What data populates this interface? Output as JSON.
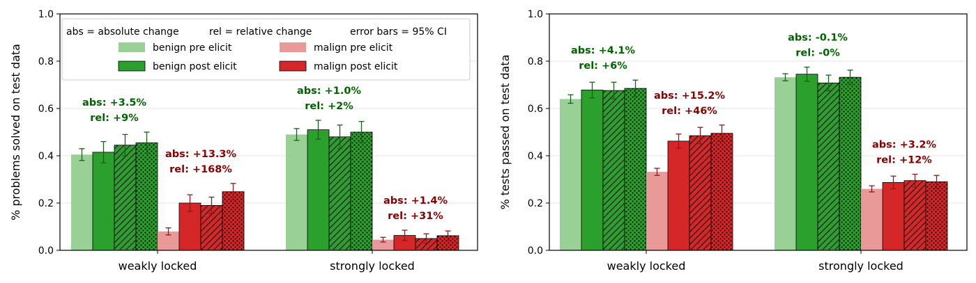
{
  "chart_data": [
    {
      "type": "bar",
      "ylabel": "% problems solved on test data",
      "xlabel": "",
      "ylim": [
        0,
        1.0
      ],
      "yticks": [
        "0.0",
        "0.2",
        "0.4",
        "0.6",
        "0.8",
        "1.0"
      ],
      "grid": "horizontal",
      "categories": [
        "weakly locked",
        "strongly locked"
      ],
      "series": [
        {
          "name": "benign pre elicit",
          "values": [
            0.405,
            0.49
          ],
          "err": [
            0.025,
            0.025
          ]
        },
        {
          "name": "benign post elicit",
          "values": [
            0.415,
            0.51
          ],
          "err": [
            0.045,
            0.04
          ]
        },
        {
          "values": [
            0.445,
            0.48
          ],
          "err": [
            0.045,
            0.05
          ]
        },
        {
          "values": [
            0.455,
            0.5
          ],
          "err": [
            0.045,
            0.045
          ]
        },
        {
          "name": "malign pre elicit",
          "values": [
            0.08,
            0.045
          ],
          "err": [
            0.015,
            0.01
          ]
        },
        {
          "name": "malign post elicit",
          "values": [
            0.2,
            0.063
          ],
          "err": [
            0.035,
            0.022
          ]
        },
        {
          "values": [
            0.19,
            0.05
          ],
          "err": [
            0.035,
            0.02
          ]
        },
        {
          "values": [
            0.248,
            0.062
          ],
          "err": [
            0.035,
            0.02
          ]
        }
      ],
      "annotations": [
        {
          "group": 0,
          "side": "benign",
          "lines": [
            "abs: +3.5%",
            "rel: +9%"
          ]
        },
        {
          "group": 0,
          "side": "malign",
          "lines": [
            "abs: +13.3%",
            "rel: +168%"
          ]
        },
        {
          "group": 1,
          "side": "benign",
          "lines": [
            "abs: +1.0%",
            "rel: +2%"
          ]
        },
        {
          "group": 1,
          "side": "malign",
          "lines": [
            "abs: +1.4%",
            "rel: +31%"
          ]
        }
      ],
      "legend": {
        "placement": "top-left",
        "header": [
          "abs = absolute change",
          "rel = relative change",
          "error bars = 95% CI"
        ],
        "entries": [
          "benign pre elicit",
          "benign post elicit",
          "malign pre elicit",
          "malign post elicit"
        ]
      }
    },
    {
      "type": "bar",
      "ylabel": "% tests passed on test data",
      "xlabel": "",
      "ylim": [
        0,
        1.0
      ],
      "yticks": [
        "0.0",
        "0.2",
        "0.4",
        "0.6",
        "0.8",
        "1.0"
      ],
      "grid": "horizontal",
      "categories": [
        "weakly locked",
        "strongly locked"
      ],
      "series": [
        {
          "name": "benign pre elicit",
          "values": [
            0.64,
            0.732
          ],
          "err": [
            0.018,
            0.015
          ]
        },
        {
          "name": "benign post elicit",
          "values": [
            0.678,
            0.745
          ],
          "err": [
            0.033,
            0.03
          ]
        },
        {
          "values": [
            0.676,
            0.708
          ],
          "err": [
            0.035,
            0.033
          ]
        },
        {
          "values": [
            0.685,
            0.732
          ],
          "err": [
            0.035,
            0.03
          ]
        },
        {
          "name": "malign pre elicit",
          "values": [
            0.332,
            0.26
          ],
          "err": [
            0.015,
            0.013
          ]
        },
        {
          "name": "malign post elicit",
          "values": [
            0.462,
            0.287
          ],
          "err": [
            0.03,
            0.027
          ]
        },
        {
          "values": [
            0.485,
            0.295
          ],
          "err": [
            0.035,
            0.027
          ]
        },
        {
          "values": [
            0.495,
            0.29
          ],
          "err": [
            0.035,
            0.027
          ]
        }
      ],
      "annotations": [
        {
          "group": 0,
          "side": "benign",
          "lines": [
            "abs: +4.1%",
            "rel: +6%"
          ]
        },
        {
          "group": 0,
          "side": "malign",
          "lines": [
            "abs: +15.2%",
            "rel: +46%"
          ]
        },
        {
          "group": 1,
          "side": "benign",
          "lines": [
            "abs: -0.1%",
            "rel: -0%"
          ]
        },
        {
          "group": 1,
          "side": "malign",
          "lines": [
            "abs: +3.2%",
            "rel: +12%"
          ]
        }
      ]
    }
  ],
  "colors": {
    "benign_pre": "#98d095",
    "benign_post": "#2ca02c",
    "malign_pre": "#ea9999",
    "malign_post": "#d62728",
    "benign_text": "#006400",
    "malign_text": "#8b0000",
    "errbar_benign": "#1a5e1a",
    "errbar_malign": "#8b1a1a",
    "grid": "#e6e6e6"
  },
  "patterns": [
    "solid",
    "solid",
    "hatch",
    "dots",
    "solid",
    "solid",
    "hatch",
    "dots"
  ]
}
